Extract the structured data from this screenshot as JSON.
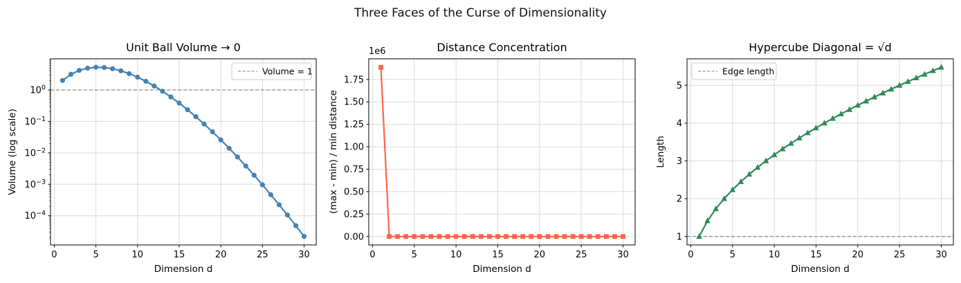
{
  "title": "Three Faces of the Curse of Dimensionality",
  "colors": {
    "blue": "#4682b4",
    "red": "#ff6347",
    "green": "#2e8b57",
    "dashed": "#808080",
    "grid": "#dcdcdc",
    "legend_border": "#cccccc",
    "text": "#000000"
  },
  "chart_data": [
    {
      "type": "line",
      "title": "Unit Ball Volume → 0",
      "xlabel": "Dimension d",
      "ylabel": "Volume (log scale)",
      "yscale": "log",
      "grid": true,
      "xlim": [
        -0.45,
        31.45
      ],
      "ylim_log10": [
        -4.93,
        0.99
      ],
      "xticks": [
        0,
        5,
        10,
        15,
        20,
        25,
        30
      ],
      "yticks": [
        {
          "v": 1,
          "label": "10^0"
        },
        {
          "v": 0.1,
          "label": "10^−1"
        },
        {
          "v": 0.01,
          "label": "10^−2"
        },
        {
          "v": 0.001,
          "label": "10^−3"
        },
        {
          "v": 0.0001,
          "label": "10^−4"
        }
      ],
      "x": [
        1,
        2,
        3,
        4,
        5,
        6,
        7,
        8,
        9,
        10,
        11,
        12,
        13,
        14,
        15,
        16,
        17,
        18,
        19,
        20,
        21,
        22,
        23,
        24,
        25,
        26,
        27,
        28,
        29,
        30
      ],
      "series": [
        {
          "name": "Unit ball volume",
          "color_key": "blue",
          "marker": "circle",
          "values": [
            2.0,
            3.1416,
            4.1888,
            4.9348,
            5.2638,
            5.1677,
            4.7248,
            4.0587,
            3.2985,
            2.5502,
            1.8841,
            1.3353,
            0.9107,
            0.5993,
            0.3814,
            0.2353,
            0.1409,
            0.08215,
            0.04662,
            0.02581,
            0.01395,
            0.00737,
            0.00381,
            0.00193,
            0.000958,
            0.000466,
            0.000223,
            0.000105,
            4.83e-05,
            2.19e-05
          ]
        }
      ],
      "hline": {
        "y": 1,
        "label": "Volume = 1"
      },
      "legend": {
        "entries": [
          "Volume = 1"
        ],
        "position": "upper right"
      }
    },
    {
      "type": "line",
      "title": "Distance Concentration",
      "xlabel": "Dimension d",
      "ylabel": "(max - min) / min distance",
      "yscale": "linear",
      "grid": true,
      "offset_text": "1e6",
      "xlim": [
        -0.45,
        31.45
      ],
      "ylim": [
        -94300,
        1980000
      ],
      "xticks": [
        0,
        5,
        10,
        15,
        20,
        25,
        30
      ],
      "yticks": [
        {
          "v": 0,
          "label": "0.00"
        },
        {
          "v": 250000,
          "label": "0.25"
        },
        {
          "v": 500000,
          "label": "0.50"
        },
        {
          "v": 750000,
          "label": "0.75"
        },
        {
          "v": 1000000,
          "label": "1.00"
        },
        {
          "v": 1250000,
          "label": "1.25"
        },
        {
          "v": 1500000,
          "label": "1.50"
        },
        {
          "v": 1750000,
          "label": "1.75"
        }
      ],
      "x": [
        1,
        2,
        3,
        4,
        5,
        6,
        7,
        8,
        9,
        10,
        11,
        12,
        13,
        14,
        15,
        16,
        17,
        18,
        19,
        20,
        21,
        22,
        23,
        24,
        25,
        26,
        27,
        28,
        29,
        30
      ],
      "series": [
        {
          "name": "(max - min) / min distance ratio",
          "color_key": "red",
          "marker": "square",
          "values": [
            1886000,
            0,
            0,
            0,
            0,
            0,
            0,
            0,
            0,
            0,
            0,
            0,
            0,
            0,
            0,
            0,
            0,
            0,
            0,
            0,
            0,
            0,
            0,
            0,
            0,
            0,
            0,
            0,
            0,
            0
          ]
        }
      ]
    },
    {
      "type": "line",
      "title": "Hypercube Diagonal = √d",
      "xlabel": "Dimension d",
      "ylabel": "Length",
      "yscale": "linear",
      "grid": true,
      "xlim": [
        -0.45,
        31.45
      ],
      "ylim": [
        0.776,
        5.701
      ],
      "xticks": [
        0,
        5,
        10,
        15,
        20,
        25,
        30
      ],
      "yticks": [
        {
          "v": 1,
          "label": "1"
        },
        {
          "v": 2,
          "label": "2"
        },
        {
          "v": 3,
          "label": "3"
        },
        {
          "v": 4,
          "label": "4"
        },
        {
          "v": 5,
          "label": "5"
        }
      ],
      "x": [
        1,
        2,
        3,
        4,
        5,
        6,
        7,
        8,
        9,
        10,
        11,
        12,
        13,
        14,
        15,
        16,
        17,
        18,
        19,
        20,
        21,
        22,
        23,
        24,
        25,
        26,
        27,
        28,
        29,
        30
      ],
      "series": [
        {
          "name": "Diagonal √d",
          "color_key": "green",
          "marker": "triangle",
          "values": [
            1.0,
            1.414,
            1.732,
            2.0,
            2.236,
            2.449,
            2.646,
            2.828,
            3.0,
            3.162,
            3.317,
            3.464,
            3.606,
            3.742,
            3.873,
            4.0,
            4.123,
            4.243,
            4.359,
            4.472,
            4.583,
            4.69,
            4.796,
            4.899,
            5.0,
            5.099,
            5.196,
            5.292,
            5.385,
            5.477
          ]
        }
      ],
      "hline": {
        "y": 1,
        "label": "Edge length"
      },
      "legend": {
        "entries": [
          "Edge length"
        ],
        "position": "upper left"
      }
    }
  ]
}
